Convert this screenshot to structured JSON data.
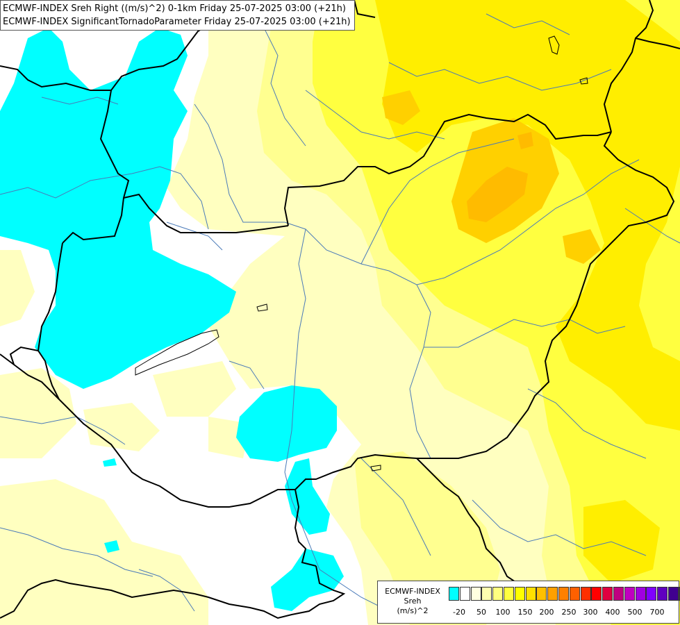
{
  "title": {
    "line1": "ECMWF-INDEX Sreh Right ((m/s)^2) 0-1km Friday 25-07-2025 03:00 (+21h)",
    "line2": "ECMWF-INDEX SignificantTornadoParameter Friday 25-07-2025 03:00 (+21h)"
  },
  "legend": {
    "line1": "ECMWF-INDEX",
    "line2": "Sreh",
    "line3": "(m/s)^2",
    "swatch_colors": [
      "#00ffff",
      "#ffffff",
      "#ffffe0",
      "#ffffb0",
      "#ffff80",
      "#ffff40",
      "#ffff00",
      "#ffe000",
      "#ffc000",
      "#ffa000",
      "#ff8000",
      "#ff6000",
      "#ff3000",
      "#ff0000",
      "#e00040",
      "#c00080",
      "#c000c0",
      "#a000e0",
      "#8000ff",
      "#6000c0",
      "#400090",
      "#000080"
    ],
    "ticks": [
      "-20",
      "50",
      "100",
      "150",
      "200",
      "250",
      "300",
      "400",
      "500",
      "700"
    ]
  },
  "colors": {
    "cyan": "#00ffff",
    "white": "#ffffff",
    "pale_yellow": "#ffffc0",
    "light_yellow": "#ffff90",
    "yellow": "#ffff40",
    "bright_yellow": "#ffee00",
    "gold": "#ffd000",
    "orange_gold": "#ffbb00",
    "border": "#000000",
    "river": "#4a7ab8"
  }
}
